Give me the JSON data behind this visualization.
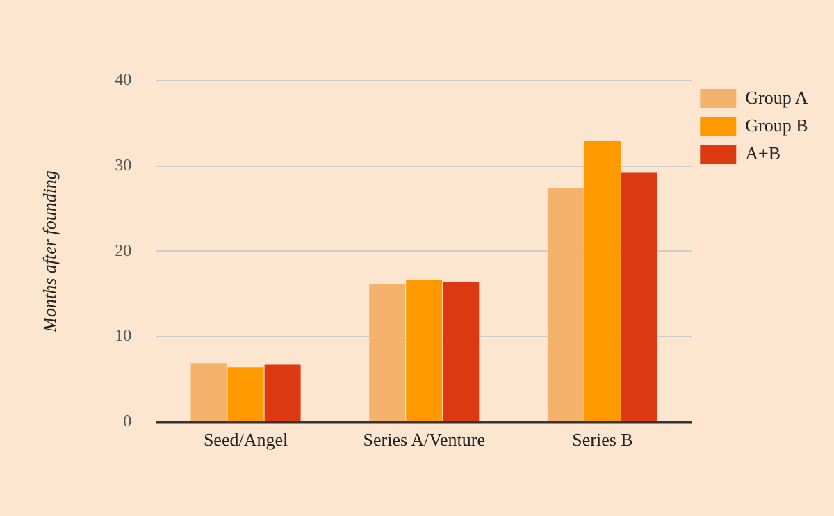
{
  "chart_data": {
    "type": "bar",
    "ylabel": "Months after founding",
    "categories": [
      "Seed/Angel",
      "Series A/Venture",
      "Series B"
    ],
    "series": [
      {
        "name": "Group A",
        "color": "#f5b26d",
        "values": [
          6.9,
          16.2,
          27.4
        ]
      },
      {
        "name": "Group B",
        "color": "#fe9900",
        "values": [
          6.4,
          16.7,
          32.9
        ]
      },
      {
        "name": "A+B",
        "color": "#dc3912",
        "values": [
          6.7,
          16.4,
          29.2
        ]
      }
    ],
    "ylim": [
      0,
      40
    ],
    "yticks": [
      0,
      10,
      20,
      30,
      40
    ],
    "grid": "y",
    "legend": "top right"
  }
}
